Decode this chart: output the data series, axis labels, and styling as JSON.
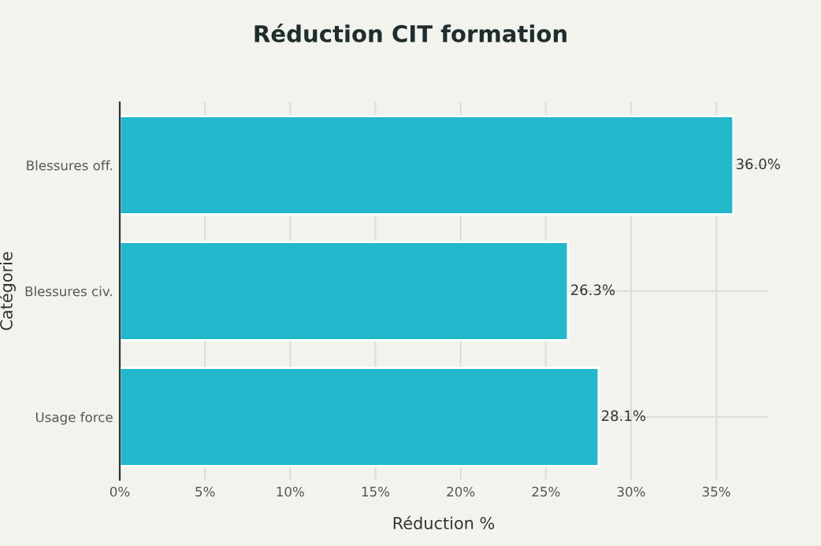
{
  "chart_data": {
    "type": "bar",
    "orientation": "horizontal",
    "title": "Réduction CIT formation",
    "xlabel": "Réduction %",
    "ylabel": "Catégorie",
    "categories": [
      "Blessures off.",
      "Blessures civ.",
      "Usage force"
    ],
    "values": [
      36.0,
      26.3,
      28.1
    ],
    "color": "#22b8cc",
    "value_labels": [
      "36.0%",
      "26.3%",
      "28.1%"
    ],
    "xlim": [
      0,
      38
    ],
    "xticks": [
      {
        "value": 0,
        "label": "0%"
      },
      {
        "value": 5,
        "label": "5%"
      },
      {
        "value": 10,
        "label": "10%"
      },
      {
        "value": 15,
        "label": "15%"
      },
      {
        "value": 20,
        "label": "20%"
      },
      {
        "value": 25,
        "label": "25%"
      },
      {
        "value": 30,
        "label": "30%"
      },
      {
        "value": 35,
        "label": "35%"
      }
    ],
    "grid": true
  }
}
